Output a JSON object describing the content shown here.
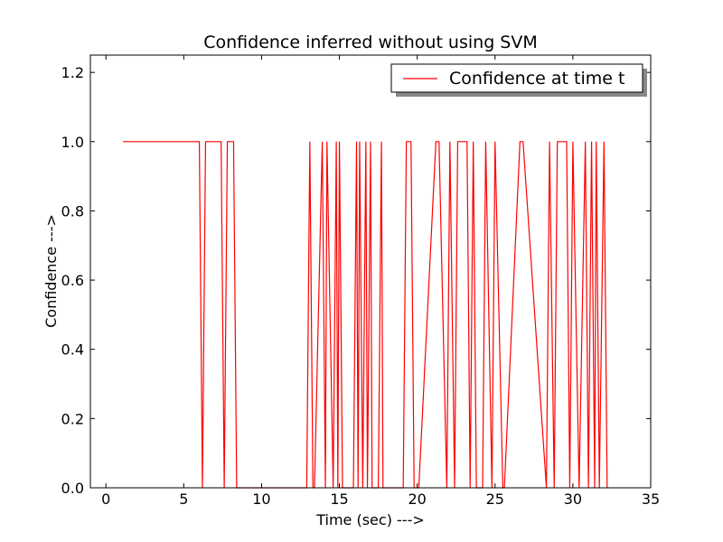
{
  "chart_data": {
    "type": "line",
    "title": "Confidence inferred without using SVM",
    "xlabel": "Time (sec) --->",
    "ylabel": "Confidence --->",
    "xlim": [
      -1,
      35
    ],
    "ylim": [
      0,
      1.25
    ],
    "xticks": [
      0,
      5,
      10,
      15,
      20,
      25,
      30,
      35
    ],
    "xtick_labels": [
      "0",
      "5",
      "10",
      "15",
      "20",
      "25",
      "30",
      "35"
    ],
    "yticks": [
      0.0,
      0.2,
      0.4,
      0.6,
      0.8,
      1.0,
      1.2
    ],
    "ytick_labels": [
      "0.0",
      "0.2",
      "0.4",
      "0.6",
      "0.8",
      "1.0",
      "1.2"
    ],
    "grid": false,
    "legend_position": "top-right",
    "series": [
      {
        "name": "Confidence at time t",
        "color": "#ff0000",
        "x": [
          1.1,
          6.0,
          6.2,
          6.4,
          7.4,
          7.6,
          7.8,
          8.2,
          8.4,
          12.9,
          13.1,
          13.3,
          13.4,
          13.9,
          14.1,
          14.2,
          14.6,
          14.8,
          14.9,
          15.0,
          15.2,
          15.9,
          16.1,
          16.2,
          16.3,
          16.5,
          16.7,
          16.8,
          17.0,
          17.1,
          17.5,
          17.7,
          17.8,
          19.1,
          19.3,
          19.6,
          19.8,
          20.1,
          21.2,
          21.4,
          21.9,
          22.1,
          22.4,
          22.6,
          23.2,
          23.4,
          23.6,
          23.8,
          24.2,
          24.4,
          24.8,
          25.0,
          25.5,
          25.6,
          26.6,
          26.8,
          28.3,
          28.5,
          28.8,
          29.0,
          29.6,
          29.8,
          30.0,
          30.4,
          30.8,
          31.0,
          31.2,
          31.4,
          31.5,
          31.7,
          32.0,
          32.2
        ],
        "y": [
          1,
          1,
          0,
          1,
          1,
          0,
          1,
          1,
          0,
          0,
          1,
          0,
          0,
          1,
          0,
          1,
          0,
          1,
          0,
          1,
          0,
          0,
          1,
          0,
          1,
          0,
          1,
          0,
          1,
          0,
          0,
          1,
          0,
          0,
          1,
          1,
          0,
          0,
          1,
          1,
          0,
          1,
          0,
          1,
          1,
          0,
          1,
          0,
          0,
          1,
          0,
          1,
          0,
          0,
          1,
          1,
          0,
          1,
          0,
          1,
          1,
          0,
          1,
          0,
          1,
          0,
          1,
          0,
          1,
          0,
          1,
          0
        ]
      }
    ]
  }
}
